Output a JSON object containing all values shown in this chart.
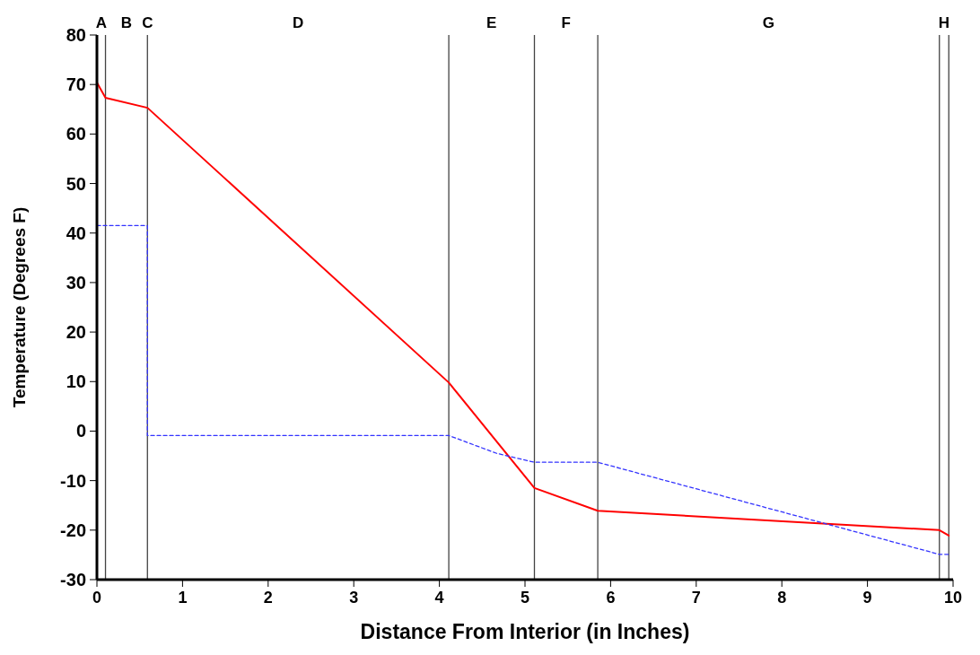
{
  "chart_data": {
    "type": "line",
    "xlabel": "Distance From Interior (in Inches)",
    "ylabel": "Temperature (Degrees F)",
    "xlim": [
      0,
      10
    ],
    "ylim": [
      -30,
      80
    ],
    "xticks": [
      0,
      1,
      2,
      3,
      4,
      5,
      6,
      7,
      8,
      9,
      10
    ],
    "yticks": [
      -30,
      -20,
      -10,
      0,
      10,
      20,
      30,
      40,
      50,
      60,
      70,
      80
    ],
    "grid": false,
    "marker": "none",
    "series": [
      {
        "color": "#ff0000",
        "line_style": "solid",
        "x": [
          0,
          0.1,
          0.59,
          4.11,
          5.11,
          5.85,
          9.84,
          9.95
        ],
        "values": [
          70.4,
          67.3,
          65.3,
          9.8,
          -11.5,
          -16.1,
          -20,
          -21.1
        ]
      },
      {
        "color": "#3333ff",
        "line_style": "dashed",
        "x": [
          0,
          0.59,
          0.59,
          4.11,
          4.67,
          5.11,
          5.85,
          9.84,
          9.95
        ],
        "values": [
          41.5,
          41.5,
          -0.9,
          -0.9,
          -4.5,
          -6.3,
          -6.3,
          -24.9,
          -24.9
        ]
      }
    ],
    "ref_lines": [
      {
        "axis": "x",
        "value": 0.1,
        "color": "#444444"
      },
      {
        "axis": "x",
        "value": 0.59,
        "color": "#444444",
        "label": "C"
      },
      {
        "axis": "x",
        "value": 4.11,
        "color": "#444444"
      },
      {
        "axis": "x",
        "value": 5.11,
        "color": "#444444"
      },
      {
        "axis": "x",
        "value": 5.85,
        "color": "#444444"
      },
      {
        "axis": "x",
        "value": 9.84,
        "color": "#444444"
      },
      {
        "axis": "x",
        "value": 9.95,
        "color": "#444444"
      }
    ],
    "annotations": [
      "A",
      "B",
      "D",
      "E",
      "F",
      "G",
      "H"
    ]
  }
}
